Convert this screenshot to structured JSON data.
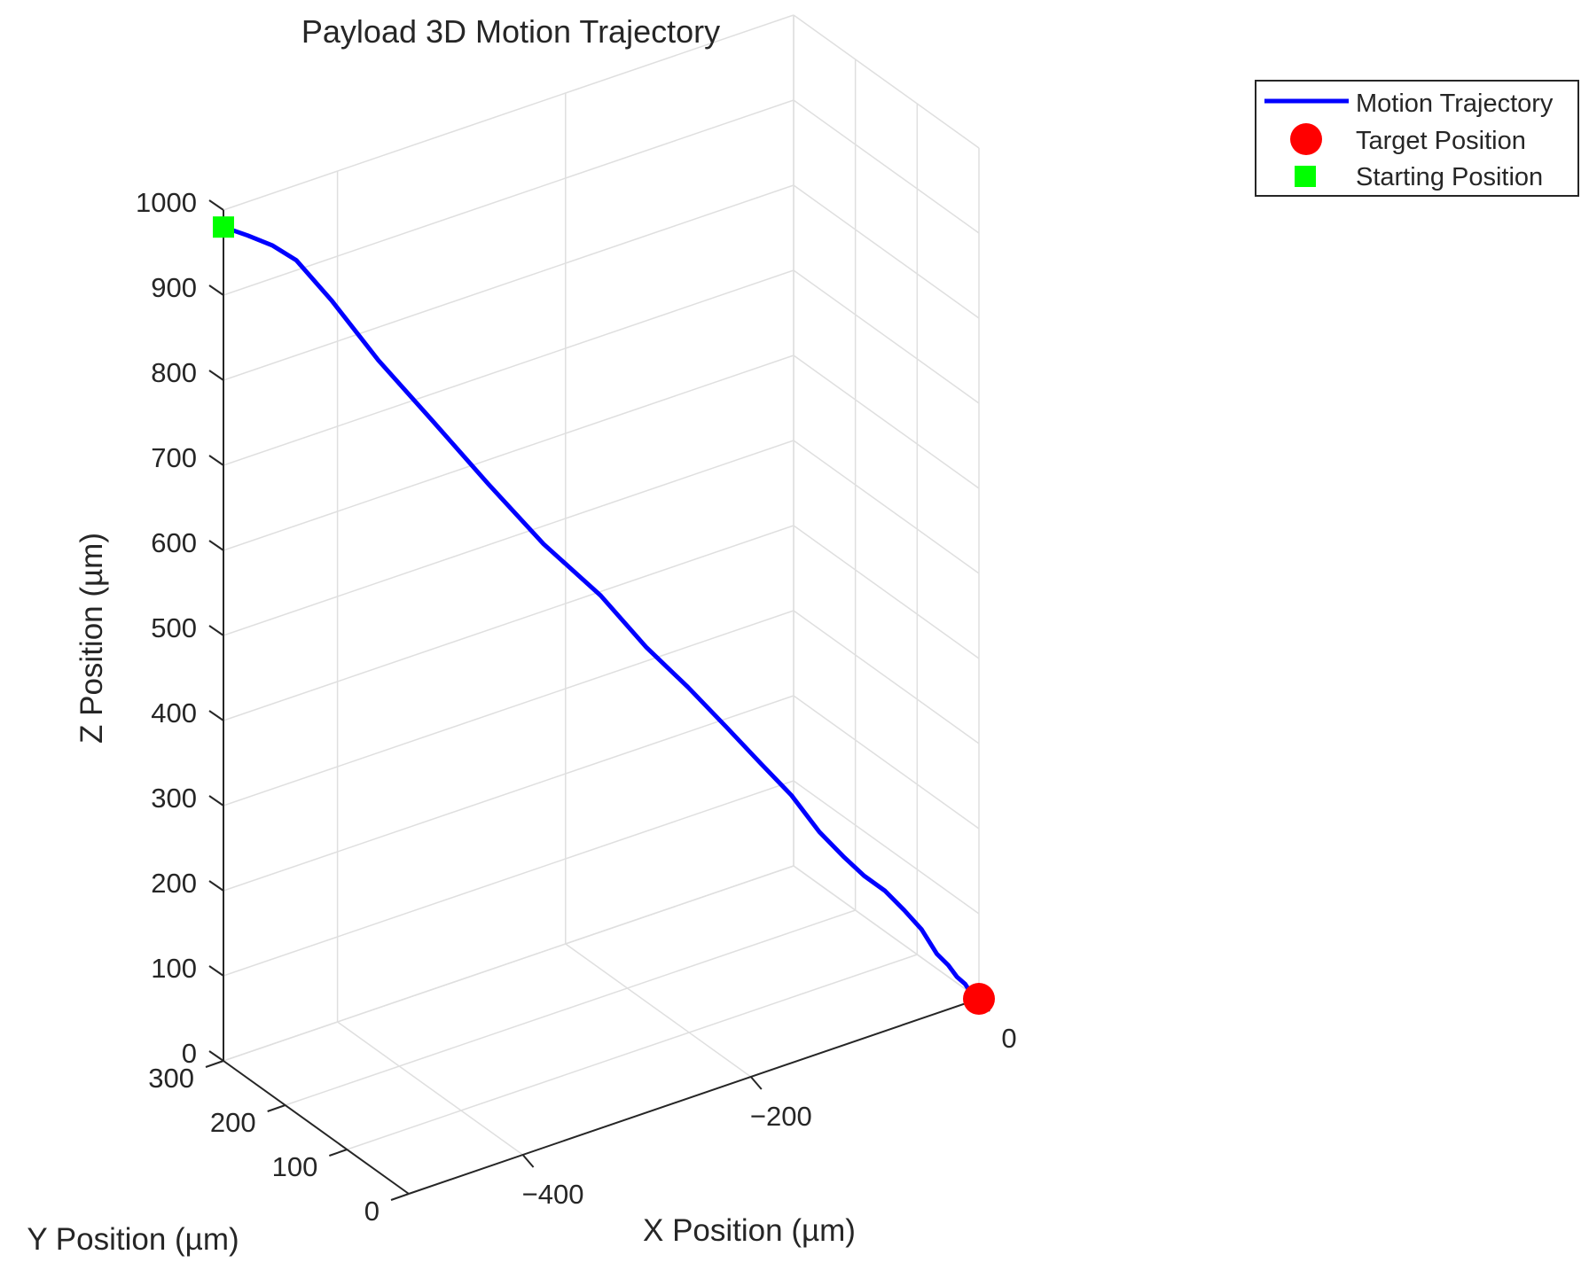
{
  "chart_data": {
    "type": "line3d",
    "title": "Payload 3D Motion Trajectory",
    "xlabel": "X Position (µm)",
    "ylabel": "Y Position (µm)",
    "zlabel": "Z Position (µm)",
    "xlim": [
      -500,
      0
    ],
    "ylim": [
      0,
      300
    ],
    "zlim": [
      0,
      1000
    ],
    "x_ticks": [
      -400,
      -200,
      0
    ],
    "x_tick_labels": [
      "−400",
      "−200",
      "0"
    ],
    "y_ticks": [
      0,
      100,
      200,
      300
    ],
    "y_tick_labels": [
      "0",
      "100",
      "200",
      "300"
    ],
    "z_ticks": [
      0,
      100,
      200,
      300,
      400,
      500,
      600,
      700,
      800,
      900,
      1000
    ],
    "z_tick_labels": [
      "0",
      "100",
      "200",
      "300",
      "400",
      "500",
      "600",
      "700",
      "800",
      "900",
      "1000"
    ],
    "grid": true,
    "legend_location": "top-right",
    "series": [
      {
        "name": "Motion Trajectory",
        "type": "line",
        "color": "#0000ff",
        "x": [
          -500,
          -482,
          -465,
          -449,
          -426,
          -395,
          -360,
          -323,
          -287,
          -250,
          -220,
          -193,
          -168,
          -146,
          -126,
          -108,
          -93,
          -79,
          -65,
          -52,
          -40,
          -30,
          -22,
          -16,
          -10,
          -7,
          -4,
          -2,
          0
        ],
        "y": [
          300,
          294,
          285,
          276,
          262,
          243,
          221,
          198,
          175,
          151,
          132,
          115,
          99,
          84,
          71,
          59,
          48,
          40,
          32,
          25,
          19,
          13,
          9,
          6,
          4,
          3,
          2,
          1,
          0
        ],
        "z": [
          980,
          965,
          950,
          930,
          880,
          805,
          730,
          650,
          575,
          510,
          445,
          395,
          345,
          300,
          260,
          215,
          185,
          160,
          140,
          115,
          90,
          60,
          45,
          30,
          20,
          12,
          6,
          2,
          0
        ]
      },
      {
        "name": "Target Position",
        "type": "marker",
        "marker": "circle",
        "color": "#ff0000",
        "x": [
          0
        ],
        "y": [
          0
        ],
        "z": [
          0
        ]
      },
      {
        "name": "Starting Position",
        "type": "marker",
        "marker": "square",
        "color": "#00ff00",
        "x": [
          -500
        ],
        "y": [
          300
        ],
        "z": [
          980
        ]
      }
    ]
  }
}
